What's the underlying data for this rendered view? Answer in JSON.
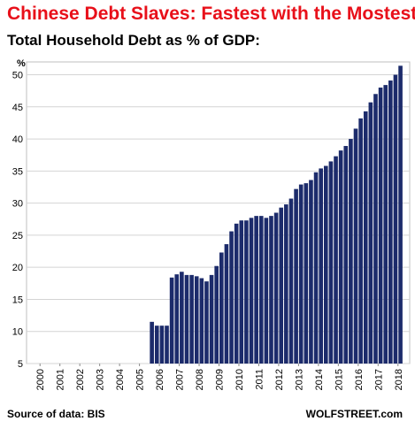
{
  "chart_data": {
    "type": "bar",
    "title": "Chinese Debt Slaves: Fastest with the Mostest",
    "subtitle": "Total Household Debt as % of GDP:",
    "y_unit": "%",
    "ylim": [
      5,
      52
    ],
    "y_ticks": [
      5,
      10,
      15,
      20,
      25,
      30,
      35,
      40,
      45,
      50
    ],
    "grid": true,
    "x_tick_labels": [
      "2000",
      "2001",
      "2002",
      "2003",
      "2004",
      "2005",
      "2006",
      "2007",
      "2008",
      "2009",
      "2010",
      "2011",
      "2012",
      "2013",
      "2014",
      "2015",
      "2016",
      "2017",
      "2018"
    ],
    "bar_color": "#1c2b6b",
    "series": [
      {
        "x": [
          "2006 Q1",
          "2006 Q2",
          "2006 Q3",
          "2006 Q4",
          "2007 Q1",
          "2007 Q2",
          "2007 Q3",
          "2007 Q4",
          "2008 Q1",
          "2008 Q2",
          "2008 Q3",
          "2008 Q4",
          "2009 Q1",
          "2009 Q2",
          "2009 Q3",
          "2009 Q4",
          "2010 Q1",
          "2010 Q2",
          "2010 Q3",
          "2010 Q4",
          "2011 Q1",
          "2011 Q2",
          "2011 Q3",
          "2011 Q4",
          "2012 Q1",
          "2012 Q2",
          "2012 Q3",
          "2012 Q4",
          "2013 Q1",
          "2013 Q2",
          "2013 Q3",
          "2013 Q4",
          "2014 Q1",
          "2014 Q2",
          "2014 Q3",
          "2014 Q4",
          "2015 Q1",
          "2015 Q2",
          "2015 Q3",
          "2015 Q4",
          "2016 Q1",
          "2016 Q2",
          "2016 Q3",
          "2016 Q4",
          "2017 Q1",
          "2017 Q2",
          "2017 Q3",
          "2017 Q4",
          "2018 Q1",
          "2018 Q2",
          "2018 Q3"
        ],
        "values": [
          11.5,
          10.9,
          10.9,
          10.9,
          18.4,
          18.9,
          19.3,
          18.8,
          18.8,
          18.6,
          18.3,
          17.8,
          18.8,
          20.2,
          22.3,
          23.6,
          25.6,
          26.8,
          27.3,
          27.3,
          27.7,
          28.0,
          28.0,
          27.7,
          28.0,
          28.5,
          29.3,
          29.8,
          30.7,
          32.2,
          32.9,
          33.1,
          33.6,
          34.8,
          35.4,
          35.8,
          36.5,
          37.3,
          38.2,
          38.9,
          40.0,
          41.6,
          43.2,
          44.3,
          45.7,
          47.0,
          48.0,
          48.4,
          49.1,
          50.0,
          51.4
        ]
      }
    ]
  },
  "footer": {
    "source": "Source of data: BIS",
    "brand": "WOLFSTREET.com"
  }
}
